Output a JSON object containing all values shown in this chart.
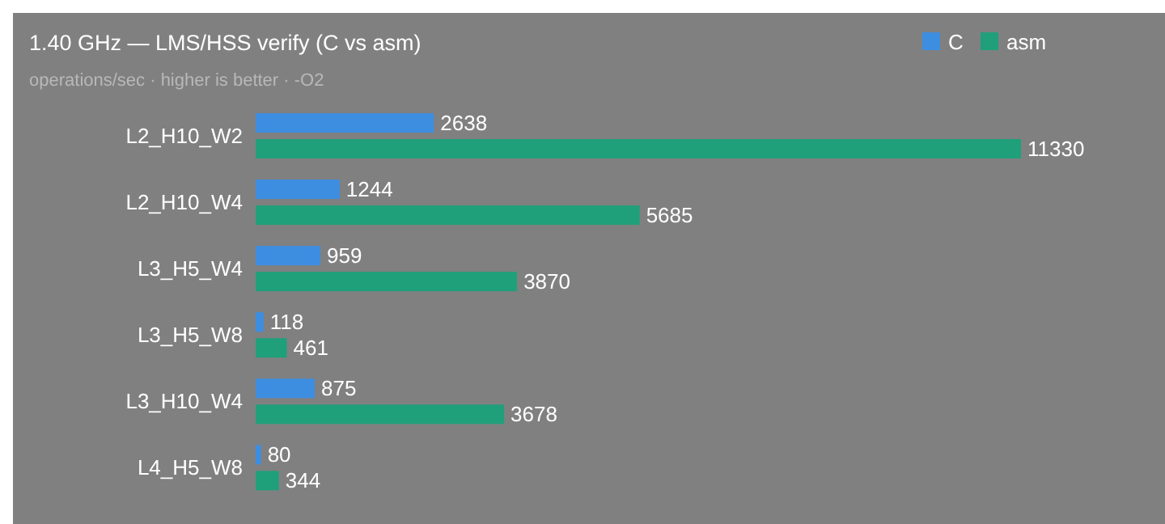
{
  "chart_data": {
    "type": "bar",
    "orientation": "horizontal",
    "title": "1.40 GHz — LMS/HSS verify (C vs asm)",
    "subtitle": "operations/sec · higher is better · -O2",
    "categories": [
      "L2_H10_W2",
      "L2_H10_W4",
      "L3_H5_W4",
      "L3_H5_W8",
      "L3_H10_W4",
      "L4_H5_W8"
    ],
    "series": [
      {
        "name": "C",
        "color": "#3d8ee0",
        "values": [
          2638,
          1244,
          959,
          118,
          875,
          80
        ]
      },
      {
        "name": "asm",
        "color": "#1fa07a",
        "values": [
          11330,
          5685,
          3870,
          461,
          3678,
          344
        ]
      }
    ],
    "data_labels": true,
    "legend": "top right",
    "grid": false
  }
}
